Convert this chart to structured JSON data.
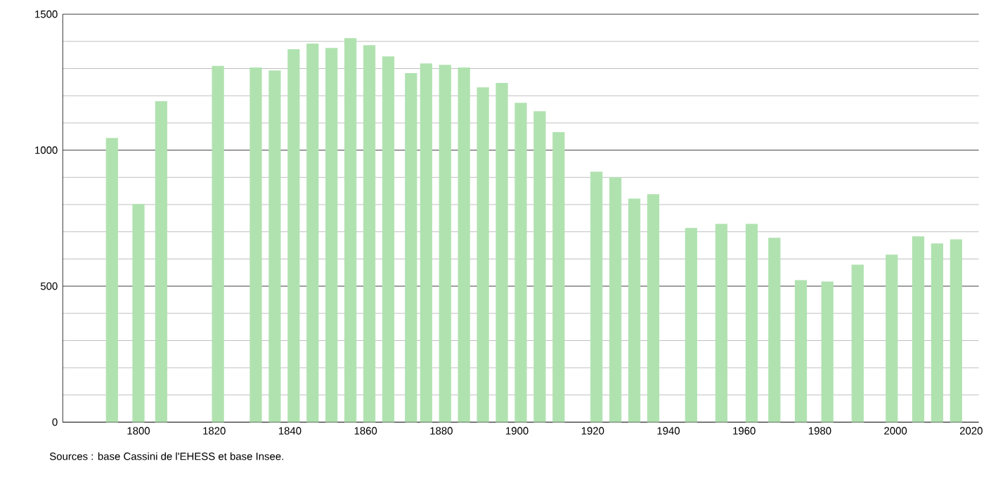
{
  "chart_data": {
    "type": "bar",
    "x": [
      1793,
      1800,
      1806,
      1821,
      1831,
      1836,
      1841,
      1846,
      1851,
      1856,
      1861,
      1866,
      1872,
      1876,
      1881,
      1886,
      1891,
      1896,
      1901,
      1906,
      1911,
      1921,
      1926,
      1931,
      1936,
      1946,
      1954,
      1962,
      1968,
      1975,
      1982,
      1990,
      1999,
      2006,
      2011,
      2016
    ],
    "values": [
      1045,
      802,
      1180,
      1310,
      1304,
      1293,
      1371,
      1392,
      1376,
      1412,
      1386,
      1345,
      1283,
      1319,
      1314,
      1304,
      1231,
      1247,
      1174,
      1143,
      1066,
      921,
      900,
      822,
      838,
      714,
      729,
      729,
      678,
      522,
      517,
      579,
      616,
      683,
      657,
      672
    ],
    "color": "#b0e2b0",
    "xlim": [
      1780,
      2022
    ],
    "ylim": [
      0,
      1500
    ],
    "xticks": [
      1800,
      1820,
      1840,
      1860,
      1880,
      1900,
      1920,
      1940,
      1960,
      1980,
      2000,
      2020
    ],
    "yticks": [
      0,
      500,
      1000,
      1500
    ],
    "grid": "y",
    "annotations": [
      "Sources : base Cassini de l'EHESS et base Insee."
    ]
  }
}
